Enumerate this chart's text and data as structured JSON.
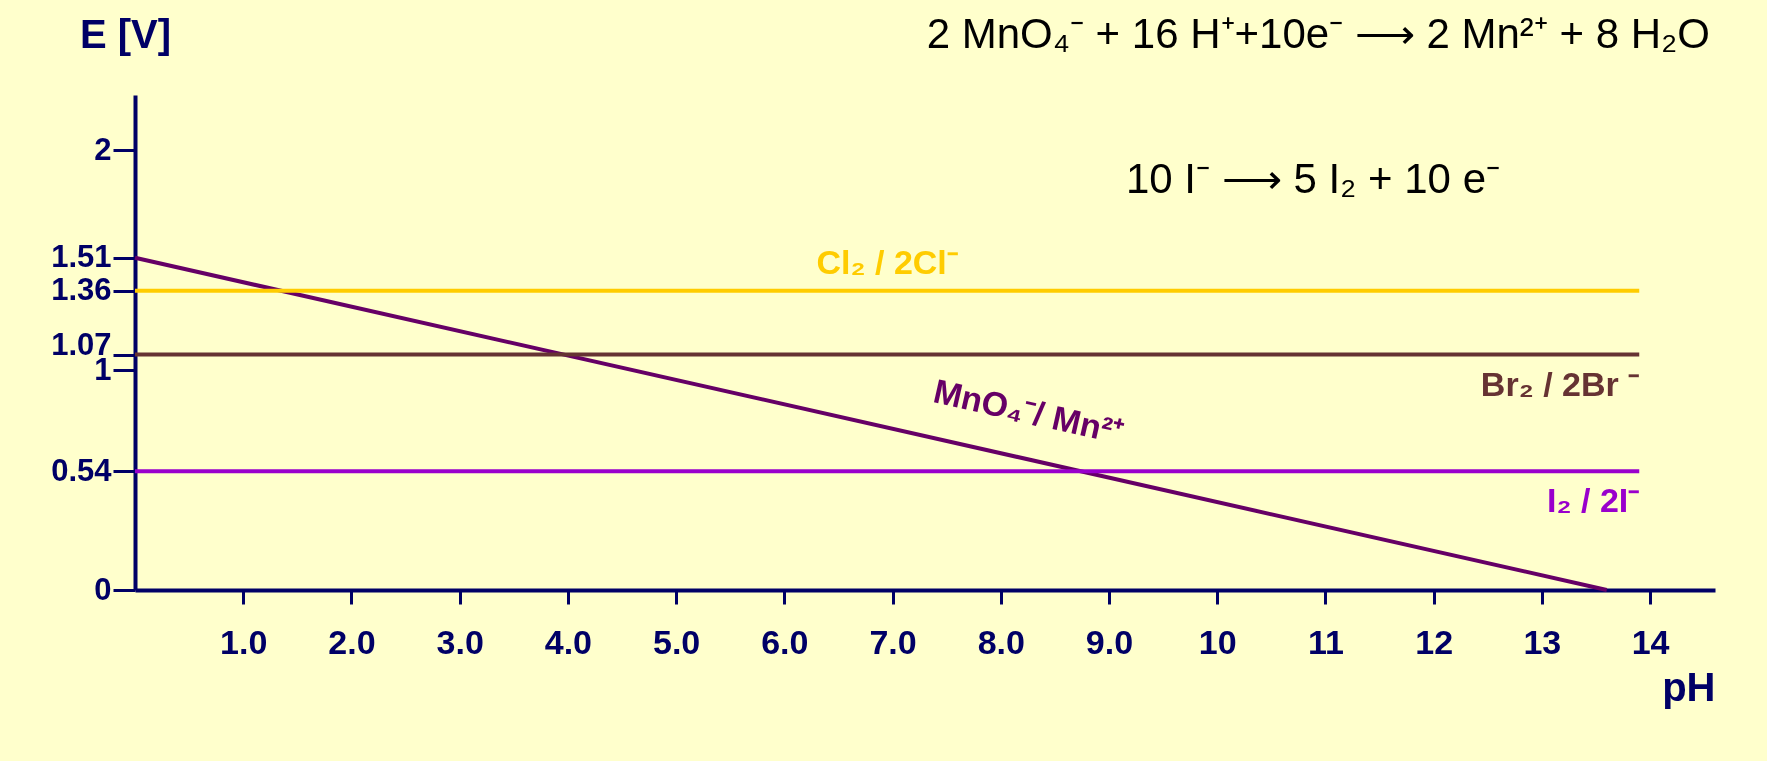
{
  "chart_data": {
    "type": "line",
    "xlabel": "pH",
    "ylabel": "E [V]",
    "annotations": [
      "2 MnO₄⁻ + 16 H⁺+10e⁻ ⟶ 2 Mn²⁺ + 8 H₂O",
      "10 I⁻ ⟶ 5 I₂ + 10 e⁻"
    ],
    "series": [
      {
        "name": "MnO₄⁻/ Mn²⁺",
        "color": "#660066",
        "x": [
          0,
          13.6
        ],
        "values": [
          1.51,
          0
        ]
      },
      {
        "name": "Cl₂ / 2Cl⁻",
        "color": "#ffcc00",
        "x": [
          0,
          13.9
        ],
        "values": [
          1.36,
          1.36
        ]
      },
      {
        "name": "Br₂ / 2Br ⁻",
        "color": "#663333",
        "x": [
          0,
          13.9
        ],
        "values": [
          1.07,
          1.07
        ]
      },
      {
        "name": "I₂ / 2I⁻",
        "color": "#9900cc",
        "x": [
          0,
          13.9
        ],
        "values": [
          0.54,
          0.54
        ]
      }
    ],
    "xlim": [
      0,
      14.6
    ],
    "xticks": [
      {
        "value": 1,
        "label": "1.0"
      },
      {
        "value": 2,
        "label": "2.0"
      },
      {
        "value": 3,
        "label": "3.0"
      },
      {
        "value": 4,
        "label": "4.0"
      },
      {
        "value": 5,
        "label": "5.0"
      },
      {
        "value": 6,
        "label": "6.0"
      },
      {
        "value": 7,
        "label": "7.0"
      },
      {
        "value": 8,
        "label": "8.0"
      },
      {
        "value": 9,
        "label": "9.0"
      },
      10,
      11,
      12,
      13,
      14
    ],
    "ylim": [
      0,
      2.25
    ],
    "yticks": [
      0,
      0.54,
      1,
      1.07,
      1.36,
      1.51,
      2
    ],
    "grid": false,
    "legend": false
  }
}
